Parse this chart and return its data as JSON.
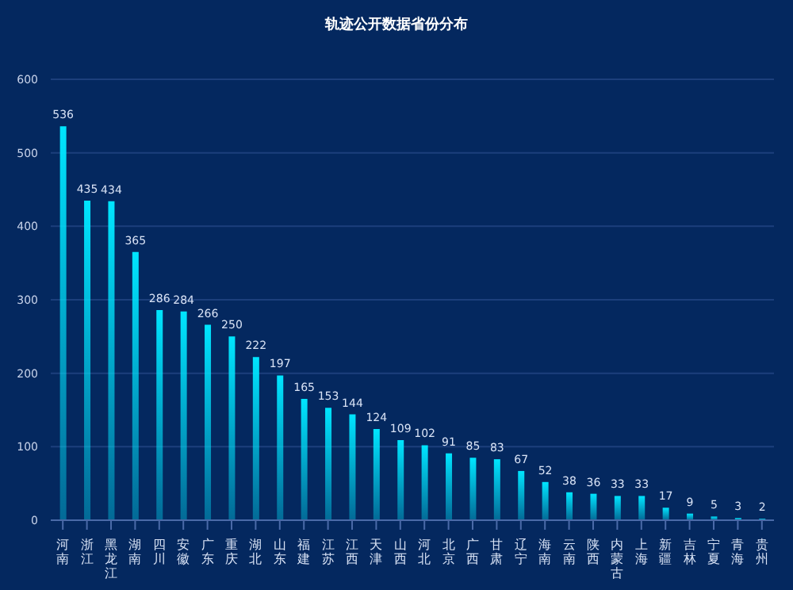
{
  "chart_data": {
    "type": "bar",
    "title": "轨迹公开数据省份分布",
    "categories": [
      "河南",
      "浙江",
      "黑龙江",
      "湖南",
      "四川",
      "安徽",
      "广东",
      "重庆",
      "湖北",
      "山东",
      "福建",
      "江苏",
      "江西",
      "天津",
      "山西",
      "河北",
      "北京",
      "广西",
      "甘肃",
      "辽宁",
      "海南",
      "云南",
      "陕西",
      "内蒙古",
      "上海",
      "新疆",
      "吉林",
      "宁夏",
      "青海",
      "贵州"
    ],
    "values": [
      536,
      435,
      434,
      365,
      286,
      284,
      266,
      250,
      222,
      197,
      165,
      153,
      144,
      124,
      109,
      102,
      91,
      85,
      83,
      67,
      52,
      38,
      36,
      33,
      33,
      17,
      9,
      5,
      3,
      2
    ],
    "color": "#00e5ff",
    "ylim": [
      0,
      600
    ],
    "yticks": [
      0,
      100,
      200,
      300,
      400,
      500,
      600
    ],
    "grid": "y",
    "data_labels": true
  }
}
